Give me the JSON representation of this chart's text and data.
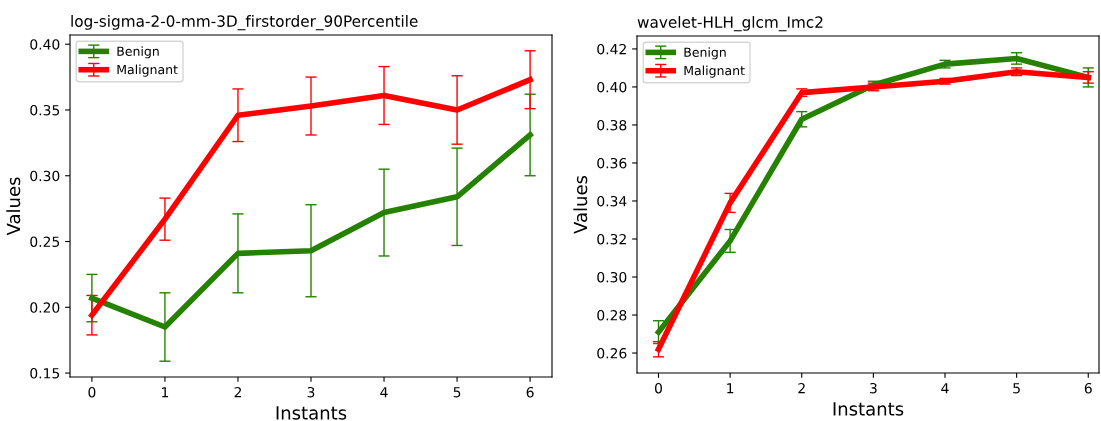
{
  "chart_data": [
    {
      "type": "line",
      "title": "log-sigma-2-0-mm-3D_firstorder_90Percentile",
      "xlabel": "Instants",
      "ylabel": "Values",
      "x": [
        0,
        1,
        2,
        3,
        4,
        5,
        6
      ],
      "xlim": [
        -0.3,
        6.3
      ],
      "xticks": [
        0,
        1,
        2,
        3,
        4,
        5,
        6
      ],
      "ylim": [
        0.147,
        0.407
      ],
      "yticks": [
        {
          "value": 0.15,
          "label": "0.15"
        },
        {
          "value": 0.2,
          "label": "0.20"
        },
        {
          "value": 0.25,
          "label": "0.25"
        },
        {
          "value": 0.3,
          "label": "0.30"
        },
        {
          "value": 0.35,
          "label": "0.35"
        },
        {
          "value": 0.4,
          "label": "0.40"
        }
      ],
      "legend": "top left",
      "grid": false,
      "marker": "none",
      "line_style": "solid",
      "series": [
        {
          "name": "Benign",
          "color": "#248200",
          "values": [
            0.207,
            0.185,
            0.241,
            0.243,
            0.272,
            0.284,
            0.331
          ],
          "errors": [
            0.018,
            0.026,
            0.03,
            0.035,
            0.033,
            0.037,
            0.031
          ]
        },
        {
          "name": "Malignant",
          "color": "#ff0000",
          "values": [
            0.194,
            0.267,
            0.346,
            0.353,
            0.361,
            0.35,
            0.373
          ],
          "errors": [
            0.015,
            0.016,
            0.02,
            0.022,
            0.022,
            0.026,
            0.022
          ]
        }
      ]
    },
    {
      "type": "line",
      "title": "wavelet-HLH_glcm_Imc2",
      "xlabel": "Instants",
      "ylabel": "Values",
      "x": [
        0,
        1,
        2,
        3,
        4,
        5,
        6
      ],
      "xlim": [
        -0.3,
        6.15
      ],
      "xticks": [
        0,
        1,
        2,
        3,
        4,
        5,
        6
      ],
      "ylim": [
        0.2495,
        0.4268
      ],
      "yticks": [
        {
          "value": 0.26,
          "label": "0.26"
        },
        {
          "value": 0.28,
          "label": "0.28"
        },
        {
          "value": 0.3,
          "label": "0.30"
        },
        {
          "value": 0.32,
          "label": "0.32"
        },
        {
          "value": 0.34,
          "label": "0.34"
        },
        {
          "value": 0.36,
          "label": "0.36"
        },
        {
          "value": 0.38,
          "label": "0.38"
        },
        {
          "value": 0.4,
          "label": "0.40"
        },
        {
          "value": 0.42,
          "label": "0.42"
        }
      ],
      "legend": "top left",
      "grid": false,
      "marker": "none",
      "line_style": "solid",
      "series": [
        {
          "name": "Benign",
          "color": "#248200",
          "values": [
            0.271,
            0.319,
            0.383,
            0.401,
            0.412,
            0.415,
            0.405
          ],
          "errors": [
            0.006,
            0.006,
            0.004,
            0.002,
            0.002,
            0.003,
            0.005
          ]
        },
        {
          "name": "Malignant",
          "color": "#ff0000",
          "values": [
            0.262,
            0.339,
            0.397,
            0.4,
            0.403,
            0.408,
            0.405
          ],
          "errors": [
            0.004,
            0.005,
            0.002,
            0.002,
            0.0015,
            0.002,
            0.003
          ]
        }
      ]
    }
  ]
}
